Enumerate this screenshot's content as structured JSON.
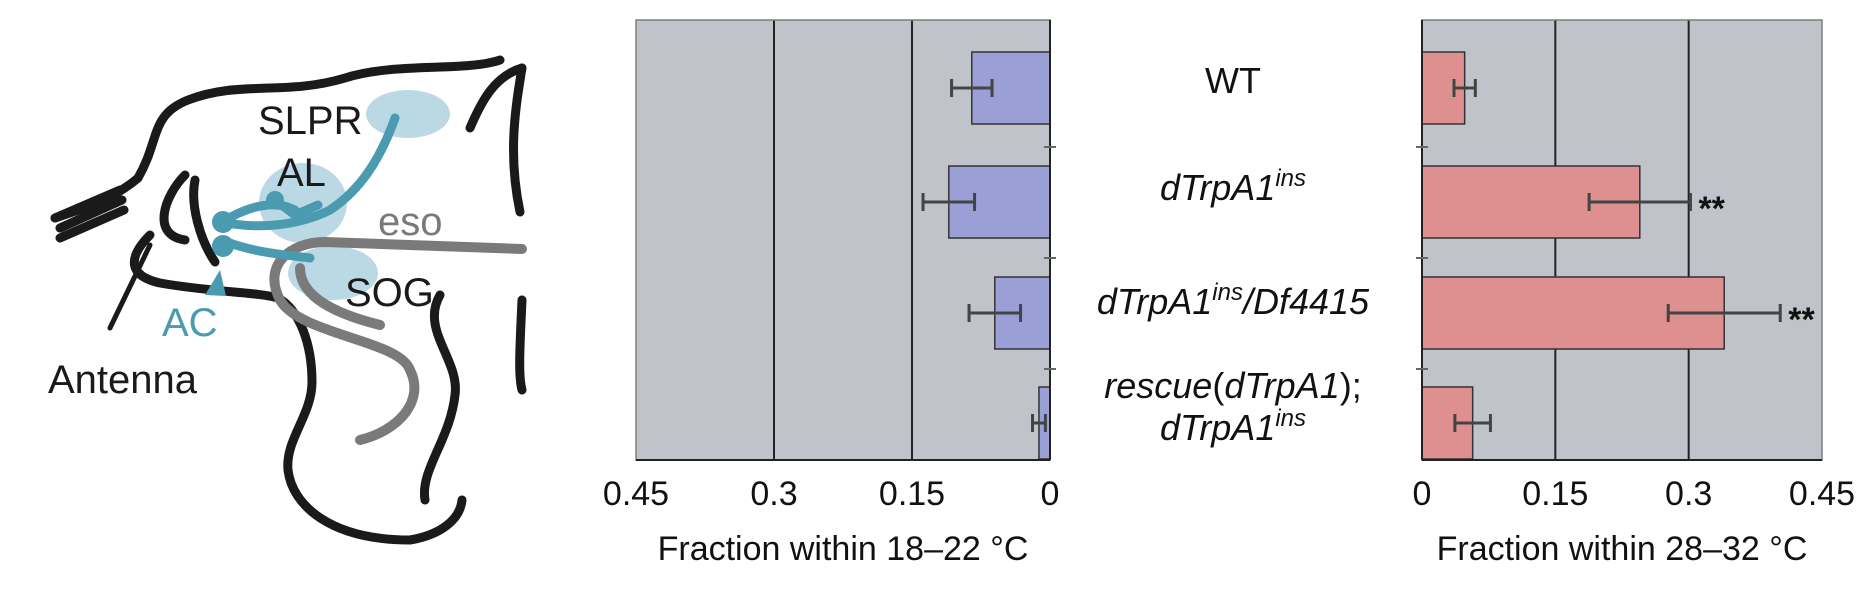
{
  "diagram": {
    "labels": {
      "slpr": "SLPR",
      "al": "AL",
      "eso": "eso",
      "sog": "SOG",
      "ac": "AC",
      "antenna": "Antenna"
    },
    "colors": {
      "outline": "#1a1a1a",
      "neuron": "#4a9bb0",
      "region": "#a9d0de",
      "esophagus": "#7a7a7a"
    }
  },
  "genotypes": [
    {
      "lines": [
        [
          {
            "t": "WT",
            "i": false
          }
        ]
      ]
    },
    {
      "lines": [
        [
          {
            "t": "dTrpA1",
            "i": true
          },
          {
            "t": "ins",
            "i": true,
            "sup": true
          }
        ]
      ]
    },
    {
      "lines": [
        [
          {
            "t": "dTrpA1",
            "i": true
          },
          {
            "t": "ins",
            "i": true,
            "sup": true
          },
          {
            "t": "/Df4415",
            "i": true
          }
        ]
      ]
    },
    {
      "lines": [
        [
          {
            "t": "rescue",
            "i": true
          },
          {
            "t": "(",
            "i": false
          },
          {
            "t": "dTrpA1",
            "i": true
          },
          {
            "t": ");",
            "i": false
          }
        ],
        [
          {
            "t": "dTrpA1",
            "i": true
          },
          {
            "t": "ins",
            "i": true,
            "sup": true
          }
        ]
      ]
    }
  ],
  "chart_data": [
    {
      "type": "bar",
      "orientation": "horizontal",
      "reversed_x": true,
      "categories": [
        "WT",
        "dTrpA1ins",
        "dTrpA1ins/Df4415",
        "rescue(dTrpA1); dTrpA1ins"
      ],
      "values": [
        0.085,
        0.11,
        0.06,
        0.012
      ],
      "errors": [
        0.022,
        0.028,
        0.028,
        0.007
      ],
      "significance": [
        "",
        "",
        "",
        ""
      ],
      "xlim": [
        0,
        0.45
      ],
      "xticks": [
        "0.45",
        "0.3",
        "0.15",
        "0"
      ],
      "xtick_values": [
        0.45,
        0.3,
        0.15,
        0
      ],
      "xlabel": "Fraction within 18–22 °C",
      "bar_color": "#9aa0d6",
      "background": "#c0c3c9",
      "grid": true
    },
    {
      "type": "bar",
      "orientation": "horizontal",
      "reversed_x": false,
      "categories": [
        "WT",
        "dTrpA1ins",
        "dTrpA1ins/Df4415",
        "rescue(dTrpA1); dTrpA1ins"
      ],
      "values": [
        0.048,
        0.245,
        0.34,
        0.057
      ],
      "errors": [
        0.012,
        0.057,
        0.063,
        0.02
      ],
      "significance": [
        "",
        "**",
        "**",
        ""
      ],
      "xlim": [
        0,
        0.45
      ],
      "xticks": [
        "0",
        "0.15",
        "0.3",
        "0.45"
      ],
      "xtick_values": [
        0,
        0.15,
        0.3,
        0.45
      ],
      "xlabel": "Fraction within 28–32 °C",
      "bar_color": "#de8f8f",
      "background": "#c0c3c9",
      "grid": true
    }
  ]
}
